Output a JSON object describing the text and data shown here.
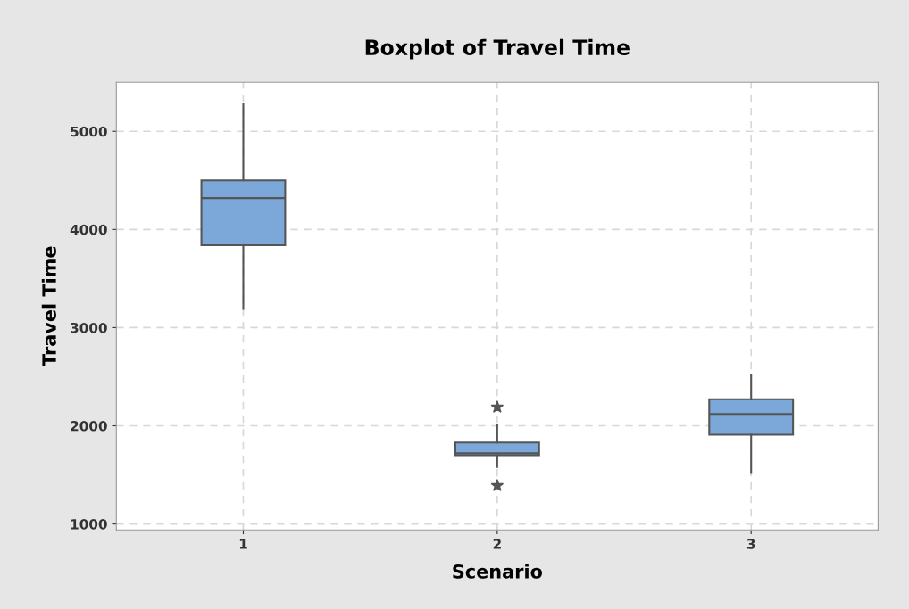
{
  "chart_data": {
    "type": "box",
    "title": "Boxplot of Travel Time",
    "xlabel": "Scenario",
    "ylabel": "Travel Time",
    "categories": [
      "1",
      "2",
      "3"
    ],
    "boxes": [
      {
        "low": 3190,
        "q1": 3840,
        "median": 4320,
        "q3": 4500,
        "high": 5280
      },
      {
        "low": 1580,
        "q1": 1700,
        "median": 1720,
        "q3": 1830,
        "high": 2010,
        "outliers": [
          2190,
          1390
        ]
      },
      {
        "low": 1520,
        "q1": 1910,
        "median": 2120,
        "q3": 2270,
        "high": 2520
      }
    ],
    "color": "#7ba7d9",
    "ylim": [
      940,
      5500
    ],
    "yticks": [
      1000,
      2000,
      3000,
      4000,
      5000
    ],
    "grid": true,
    "marker": "star"
  }
}
